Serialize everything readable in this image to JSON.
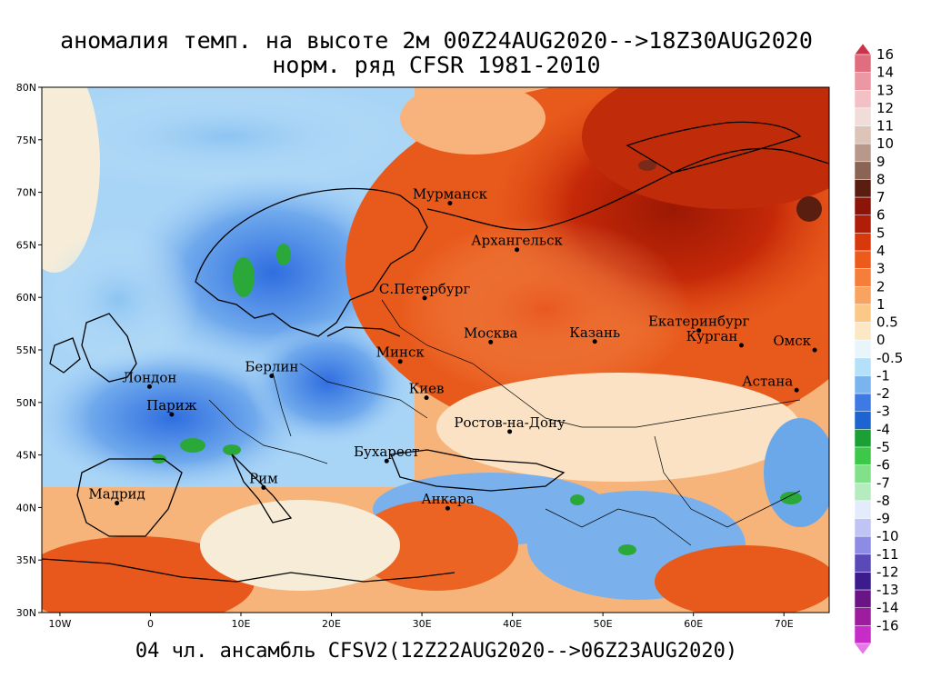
{
  "title_line1": "аномалия темп. на высоте 2м 00Z24AUG2020-->18Z30AUG2020",
  "title_line2": "норм. ряд CFSR 1981-2010",
  "footer": "04 чл. ансамбль CFSV2(12Z22AUG2020-->06Z23AUG2020)",
  "map": {
    "lon_range": [
      -12,
      75
    ],
    "lat_range": [
      30,
      80
    ],
    "lon_ticks": [
      {
        "v": -10,
        "label": "10W"
      },
      {
        "v": 0,
        "label": "0"
      },
      {
        "v": 10,
        "label": "10E"
      },
      {
        "v": 20,
        "label": "20E"
      },
      {
        "v": 30,
        "label": "30E"
      },
      {
        "v": 40,
        "label": "40E"
      },
      {
        "v": 50,
        "label": "50E"
      },
      {
        "v": 60,
        "label": "60E"
      },
      {
        "v": 70,
        "label": "70E"
      }
    ],
    "lat_ticks": [
      {
        "v": 30,
        "label": "30N"
      },
      {
        "v": 35,
        "label": "35N"
      },
      {
        "v": 40,
        "label": "40N"
      },
      {
        "v": 45,
        "label": "45N"
      },
      {
        "v": 50,
        "label": "50N"
      },
      {
        "v": 55,
        "label": "55N"
      },
      {
        "v": 60,
        "label": "60N"
      },
      {
        "v": 65,
        "label": "65N"
      },
      {
        "v": 70,
        "label": "70N"
      },
      {
        "v": 75,
        "label": "75N"
      },
      {
        "v": 80,
        "label": "80N"
      }
    ],
    "cities": [
      {
        "name": "Мурманск",
        "lon": 33.1,
        "lat": 68.97
      },
      {
        "name": "Архангельск",
        "lon": 40.5,
        "lat": 64.54
      },
      {
        "name": "С.Петербург",
        "lon": 30.3,
        "lat": 59.94
      },
      {
        "name": "Москва",
        "lon": 37.6,
        "lat": 55.75
      },
      {
        "name": "Казань",
        "lon": 49.1,
        "lat": 55.8
      },
      {
        "name": "Екатеринбург",
        "lon": 60.6,
        "lat": 56.84
      },
      {
        "name": "Курган",
        "lon": 65.3,
        "lat": 55.44
      },
      {
        "name": "Омск",
        "lon": 73.4,
        "lat": 54.99
      },
      {
        "name": "Астана",
        "lon": 71.4,
        "lat": 51.17
      },
      {
        "name": "Минск",
        "lon": 27.6,
        "lat": 53.9
      },
      {
        "name": "Берлин",
        "lon": 13.4,
        "lat": 52.52
      },
      {
        "name": "Лондон",
        "lon": -0.1,
        "lat": 51.51
      },
      {
        "name": "Париж",
        "lon": 2.35,
        "lat": 48.86
      },
      {
        "name": "Киев",
        "lon": 30.5,
        "lat": 50.45
      },
      {
        "name": "Ростов-на-Дону",
        "lon": 39.7,
        "lat": 47.23
      },
      {
        "name": "Бухарест",
        "lon": 26.1,
        "lat": 44.43
      },
      {
        "name": "Мадрид",
        "lon": -3.7,
        "lat": 40.42
      },
      {
        "name": "Рим",
        "lon": 12.5,
        "lat": 41.9
      },
      {
        "name": "Анкара",
        "lon": 32.85,
        "lat": 39.93
      }
    ]
  },
  "colorbar": {
    "labels": [
      "16",
      "14",
      "13",
      "12",
      "11",
      "10",
      "9",
      "8",
      "7",
      "6",
      "5",
      "4",
      "3",
      "2",
      "1",
      "0.5",
      "0",
      "-0.5",
      "-1",
      "-2",
      "-3",
      "-4",
      "-5",
      "-6",
      "-7",
      "-8",
      "-9",
      "-10",
      "-11",
      "-12",
      "-13",
      "-14",
      "-16"
    ],
    "colors": [
      "#c8344a",
      "#e06e7e",
      "#eb98a4",
      "#f3c0c6",
      "#f0dcd8",
      "#dcc4b8",
      "#b8988a",
      "#8a6454",
      "#5a1e10",
      "#8c1408",
      "#b01e0a",
      "#d8380c",
      "#ec5a1c",
      "#f47e3a",
      "#f8a460",
      "#fcc888",
      "#fce8c4",
      "#e8f6fc",
      "#b4e0f8",
      "#7ab4ee",
      "#3e7ae4",
      "#1e64d0",
      "#1aa034",
      "#3ec84a",
      "#82e08a",
      "#b4ecc0",
      "#e4ecfc",
      "#c0c4f4",
      "#8c8ce4",
      "#5a4ab8",
      "#3c1c8c",
      "#6a1486",
      "#9e1c9e",
      "#c82cc8",
      "#e878e8"
    ]
  }
}
